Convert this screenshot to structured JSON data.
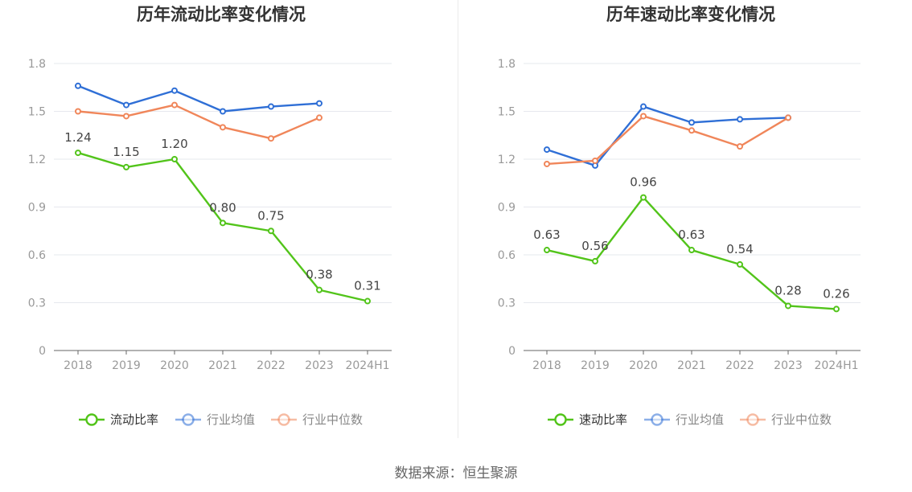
{
  "source": "数据来源：恒生聚源",
  "colors": {
    "green": "#52c41a",
    "blue": "#2f6fd6",
    "orange": "#f0865a",
    "grid": "#e6e8ee",
    "axis": "#666666",
    "tick": "#999999",
    "label": "#444444"
  },
  "chart_data": [
    {
      "type": "line",
      "title": "历年流动比率变化情况",
      "categories": [
        "2018",
        "2019",
        "2020",
        "2021",
        "2022",
        "2023",
        "2024H1"
      ],
      "ylim": [
        0,
        1.8
      ],
      "yticks": [
        "0",
        "0.3",
        "0.6",
        "0.9",
        "1.2",
        "1.5",
        "1.8"
      ],
      "series": [
        {
          "name": "流动比率",
          "color": "#52c41a",
          "values": [
            1.24,
            1.15,
            1.2,
            0.8,
            0.75,
            0.38,
            0.31
          ],
          "labels": [
            "1.24",
            "1.15",
            "1.20",
            "0.80",
            "0.75",
            "0.38",
            "0.31"
          ]
        },
        {
          "name": "行业均值",
          "color": "#2f6fd6",
          "values": [
            1.66,
            1.54,
            1.63,
            1.5,
            1.53,
            1.55,
            null
          ]
        },
        {
          "name": "行业中位数",
          "color": "#f0865a",
          "values": [
            1.5,
            1.47,
            1.54,
            1.4,
            1.33,
            1.46,
            null
          ]
        }
      ],
      "legend": "bottom"
    },
    {
      "type": "line",
      "title": "历年速动比率变化情况",
      "categories": [
        "2018",
        "2019",
        "2020",
        "2021",
        "2022",
        "2023",
        "2024H1"
      ],
      "ylim": [
        0,
        1.8
      ],
      "yticks": [
        "0",
        "0.3",
        "0.6",
        "0.9",
        "1.2",
        "1.5",
        "1.8"
      ],
      "series": [
        {
          "name": "速动比率",
          "color": "#52c41a",
          "values": [
            0.63,
            0.56,
            0.96,
            0.63,
            0.54,
            0.28,
            0.26
          ],
          "labels": [
            "0.63",
            "0.56",
            "0.96",
            "0.63",
            "0.54",
            "0.28",
            "0.26"
          ]
        },
        {
          "name": "行业均值",
          "color": "#2f6fd6",
          "values": [
            1.26,
            1.16,
            1.53,
            1.43,
            1.45,
            1.46,
            null
          ]
        },
        {
          "name": "行业中位数",
          "color": "#f0865a",
          "values": [
            1.17,
            1.19,
            1.47,
            1.38,
            1.28,
            1.46,
            null
          ]
        }
      ],
      "legend": "bottom"
    }
  ]
}
